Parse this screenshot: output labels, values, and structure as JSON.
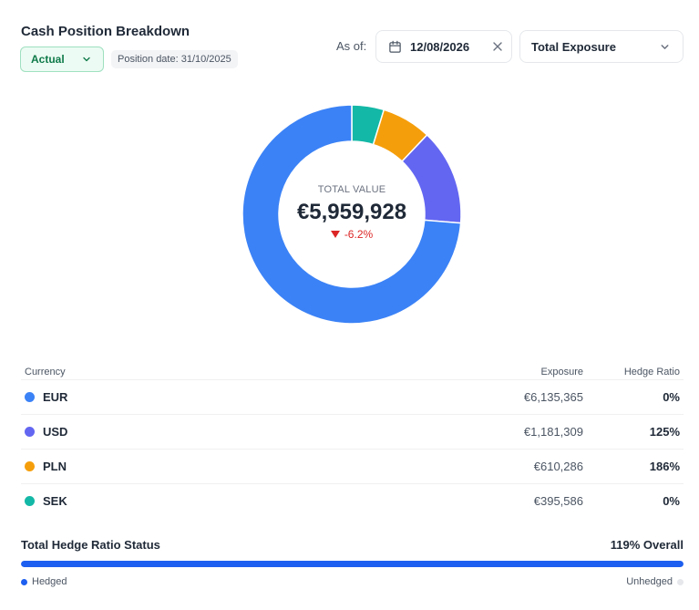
{
  "header": {
    "title": "Cash Position Breakdown",
    "scenario_label": "Actual",
    "position_date": "Position date: 31/10/2025",
    "as_of_label": "As of:",
    "as_of_date": "12/08/2026",
    "view_select": "Total Exposure"
  },
  "summary": {
    "label": "TOTAL VALUE",
    "value": "€5,959,928",
    "change": "-6.2%"
  },
  "table": {
    "headers": {
      "currency": "Currency",
      "exposure": "Exposure",
      "hedge_ratio": "Hedge Ratio"
    },
    "rows": [
      {
        "currency": "EUR",
        "exposure": "€6,135,365",
        "hedge_ratio": "0%",
        "color": "#3b82f6"
      },
      {
        "currency": "USD",
        "exposure": "€1,181,309",
        "hedge_ratio": "125%",
        "color": "#6366f1"
      },
      {
        "currency": "PLN",
        "exposure": "€610,286",
        "hedge_ratio": "186%",
        "color": "#f59e0b"
      },
      {
        "currency": "SEK",
        "exposure": "€395,586",
        "hedge_ratio": "0%",
        "color": "#14b8a6"
      }
    ]
  },
  "chart_data": {
    "type": "pie",
    "categories": [
      "EUR",
      "USD",
      "PLN",
      "SEK"
    ],
    "values": [
      6135365,
      1181309,
      610286,
      395586
    ],
    "colors": [
      "#3b82f6",
      "#6366f1",
      "#f59e0b",
      "#14b8a6"
    ]
  },
  "hedge_status": {
    "title": "Total Hedge Ratio Status",
    "overall": "119% Overall",
    "hedged_fraction": 1.0,
    "hedged_label": "Hedged",
    "unhedged_label": "Unhedged",
    "hedged_color": "#1d5ff0",
    "unhedged_color": "#e5e7eb"
  }
}
